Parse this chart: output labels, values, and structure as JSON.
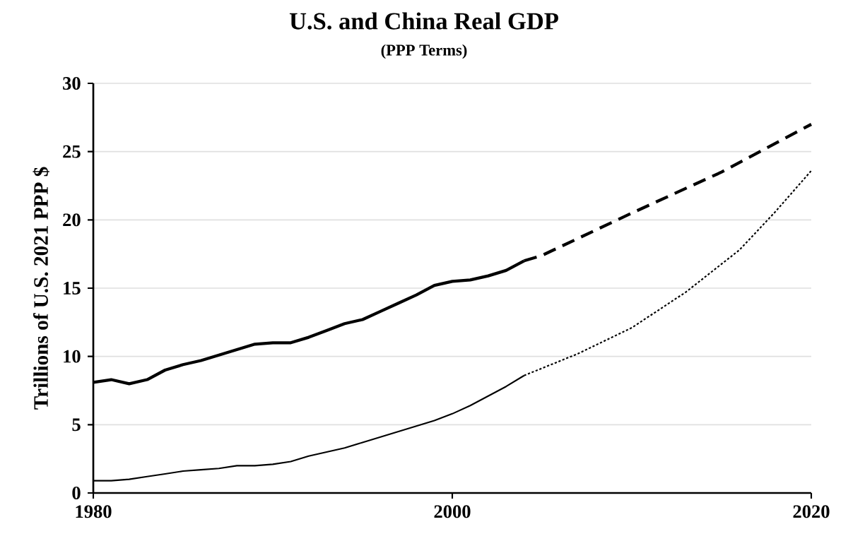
{
  "chart_data": {
    "type": "line",
    "title": "U.S. and China Real GDP",
    "subtitle": "(PPP Terms)",
    "ylabel": "Trillions of U.S. 2021 PPP $",
    "xlim": [
      1980,
      2020
    ],
    "xticks": [
      1980,
      2000,
      2020
    ],
    "ylim": [
      0,
      30
    ],
    "yticks": [
      0,
      5,
      10,
      15,
      20,
      25,
      30
    ],
    "grid": "y",
    "marker": "none",
    "series": [
      {
        "color": "#000000",
        "line_style": "solid",
        "x": [
          1980,
          1981,
          1982,
          1983,
          1984,
          1985,
          1986,
          1987,
          1988,
          1989,
          1990,
          1991,
          1992,
          1993,
          1994,
          1995,
          1996,
          1997,
          1998,
          1999,
          2000,
          2001,
          2002,
          2003,
          2004
        ],
        "values": [
          8.1,
          8.3,
          8.0,
          8.3,
          9.0,
          9.4,
          9.7,
          10.1,
          10.5,
          10.9,
          11.0,
          11.0,
          11.4,
          11.9,
          12.4,
          12.7,
          13.3,
          13.9,
          14.5,
          15.2,
          15.5,
          15.6,
          15.9,
          16.3,
          17.0
        ]
      },
      {
        "color": "#000000",
        "line_style": "dashed",
        "x": [
          2004,
          2005,
          2010,
          2015,
          2020
        ],
        "values": [
          17.0,
          17.4,
          20.5,
          23.5,
          27.0
        ]
      },
      {
        "color": "#000000",
        "line_style": "solid",
        "x": [
          1980,
          1981,
          1982,
          1983,
          1984,
          1985,
          1986,
          1987,
          1988,
          1989,
          1990,
          1991,
          1992,
          1993,
          1994,
          1995,
          1996,
          1997,
          1998,
          1999,
          2000,
          2001,
          2002,
          2003,
          2004
        ],
        "values": [
          0.9,
          0.9,
          1.0,
          1.2,
          1.4,
          1.6,
          1.7,
          1.8,
          2.0,
          2.0,
          2.1,
          2.3,
          2.7,
          3.0,
          3.3,
          3.7,
          4.1,
          4.5,
          4.9,
          5.3,
          5.8,
          6.4,
          7.1,
          7.8,
          8.6
        ]
      },
      {
        "color": "#000000",
        "line_style": "dotted",
        "x": [
          2004,
          2007,
          2010,
          2013,
          2016,
          2018,
          2020
        ],
        "values": [
          8.6,
          10.2,
          12.1,
          14.7,
          17.8,
          20.6,
          23.6
        ]
      }
    ]
  }
}
